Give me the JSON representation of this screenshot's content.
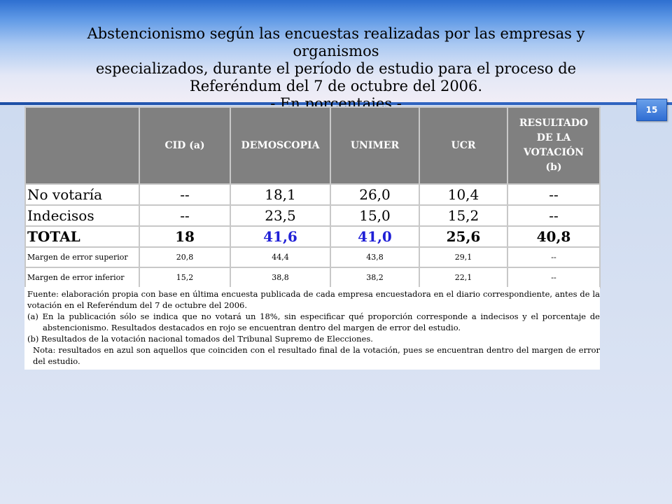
{
  "title": {
    "line1": "Abstencionismo según las encuestas realizadas por las empresas y organismos",
    "line2": "especializados, durante el período de estudio para el proceso de",
    "line3": "Referéndum del 7 de octubre del 2006.",
    "line4": "- En porcentajes -"
  },
  "page_number": "15",
  "table": {
    "headers": [
      "",
      "CID (a)",
      "DEMOSCOPIA",
      "UNIMER",
      "UCR",
      "RESULTADO DE LA VOTACIÓN (b)"
    ],
    "result_header_lines": [
      "RESULTADO",
      "DE LA",
      "VOTACIÓN",
      "(b)"
    ],
    "rows": [
      {
        "label": "No votaría",
        "cells": [
          "--",
          "18,1",
          "26,0",
          "10,4",
          "--"
        ]
      },
      {
        "label": "Indecisos",
        "cells": [
          "--",
          "23,5",
          "15,0",
          "15,2",
          "--"
        ]
      },
      {
        "label": "TOTAL",
        "cells": [
          "18",
          "41,6",
          "41,0",
          "25,6",
          "40,8"
        ]
      },
      {
        "label": "Margen de error superior",
        "cells": [
          "20,8",
          "44,4",
          "43,8",
          "29,1",
          "--"
        ]
      },
      {
        "label": "Margen de error inferior",
        "cells": [
          "15,2",
          "38,8",
          "38,2",
          "22,1",
          "--"
        ]
      }
    ],
    "highlight_color": "#1f1fd6"
  },
  "notes": {
    "source": "Fuente: elaboración propia con base en última encuesta publicada de cada empresa encuestadora en el diario correspondiente, antes de la votación en el Referéndum del 7 de octubre del 2006.",
    "note_a": "(a) En la publicación sólo se indica que no votará un 18%, sin especificar qué proporción corresponde a indecisos y el porcentaje de abstencionismo. Resultados destacados en rojo se encuentran dentro del margen de error del estudio.",
    "note_b": "(b) Resultados de la votación nacional tomados del Tribunal Supremo de Elecciones.",
    "note_blue": "Nota: resultados en azul son aquellos que coinciden con el resultado final de la votación, pues se encuentran dentro del margen de error del estudio."
  }
}
